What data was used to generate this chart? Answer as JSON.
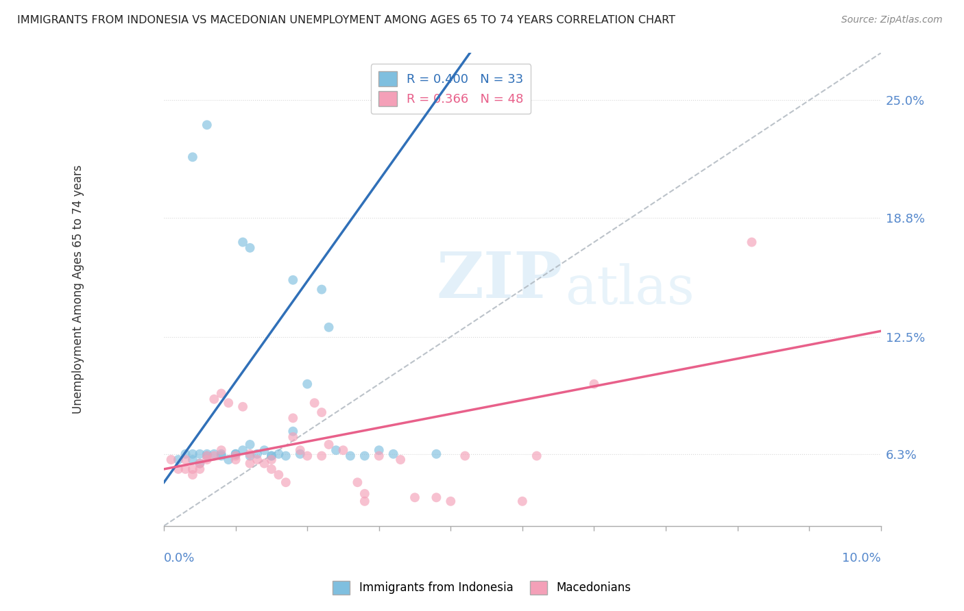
{
  "title": "IMMIGRANTS FROM INDONESIA VS MACEDONIAN UNEMPLOYMENT AMONG AGES 65 TO 74 YEARS CORRELATION CHART",
  "source": "Source: ZipAtlas.com",
  "ylabel": "Unemployment Among Ages 65 to 74 years",
  "y_ticks": [
    0.063,
    0.125,
    0.188,
    0.25
  ],
  "y_tick_labels": [
    "6.3%",
    "12.5%",
    "18.8%",
    "25.0%"
  ],
  "x_lim": [
    0.0,
    0.1
  ],
  "y_lim": [
    0.025,
    0.275
  ],
  "watermark_zip": "ZIP",
  "watermark_atlas": "atlas",
  "blue_color": "#7fbfdf",
  "pink_color": "#f4a0b8",
  "blue_line_color": "#3070b8",
  "pink_line_color": "#e8608a",
  "dot_size": 100,
  "dot_alpha": 0.65,
  "grid_color": "#d8d8d8",
  "ref_line_color": "#b0b8c0",
  "blue_line_x": [
    0.0,
    0.1
  ],
  "blue_line_y": [
    0.048,
    0.58
  ],
  "pink_line_x": [
    0.0,
    0.1
  ],
  "pink_line_y": [
    0.055,
    0.128
  ],
  "diag_line_x": [
    0.0,
    0.1
  ],
  "diag_line_y": [
    0.025,
    0.275
  ],
  "blue_x": [
    0.002,
    0.004,
    0.005,
    0.006,
    0.007,
    0.008,
    0.009,
    0.01,
    0.011,
    0.012,
    0.013,
    0.014,
    0.015,
    0.016,
    0.017,
    0.018,
    0.019,
    0.02,
    0.022,
    0.024,
    0.026,
    0.028,
    0.03,
    0.032,
    0.003,
    0.004,
    0.005,
    0.006,
    0.008,
    0.01,
    0.012,
    0.015,
    0.038
  ],
  "blue_y": [
    0.06,
    0.063,
    0.058,
    0.062,
    0.063,
    0.063,
    0.06,
    0.063,
    0.065,
    0.068,
    0.063,
    0.065,
    0.062,
    0.063,
    0.062,
    0.075,
    0.063,
    0.1,
    0.15,
    0.065,
    0.062,
    0.062,
    0.065,
    0.063,
    0.063,
    0.06,
    0.063,
    0.063,
    0.062,
    0.063,
    0.062,
    0.062,
    0.063
  ],
  "blue_outliers_x": [
    0.004,
    0.006,
    0.011,
    0.012,
    0.018,
    0.023
  ],
  "blue_outliers_y": [
    0.22,
    0.237,
    0.175,
    0.172,
    0.155,
    0.13
  ],
  "pink_x": [
    0.001,
    0.002,
    0.003,
    0.004,
    0.005,
    0.006,
    0.007,
    0.008,
    0.009,
    0.01,
    0.011,
    0.012,
    0.013,
    0.014,
    0.015,
    0.016,
    0.017,
    0.018,
    0.019,
    0.02,
    0.021,
    0.022,
    0.023,
    0.025,
    0.027,
    0.028,
    0.03,
    0.033,
    0.035,
    0.038,
    0.04,
    0.042,
    0.05,
    0.052,
    0.06,
    0.082,
    0.003,
    0.004,
    0.005,
    0.006,
    0.007,
    0.008,
    0.01,
    0.012,
    0.015,
    0.018,
    0.022,
    0.028
  ],
  "pink_y": [
    0.06,
    0.055,
    0.055,
    0.052,
    0.055,
    0.062,
    0.092,
    0.095,
    0.09,
    0.062,
    0.088,
    0.063,
    0.06,
    0.058,
    0.055,
    0.052,
    0.048,
    0.082,
    0.065,
    0.062,
    0.09,
    0.085,
    0.068,
    0.065,
    0.048,
    0.042,
    0.062,
    0.06,
    0.04,
    0.04,
    0.038,
    0.062,
    0.038,
    0.062,
    0.1,
    0.175,
    0.06,
    0.055,
    0.058,
    0.06,
    0.062,
    0.065,
    0.06,
    0.058,
    0.06,
    0.072,
    0.062,
    0.038
  ]
}
